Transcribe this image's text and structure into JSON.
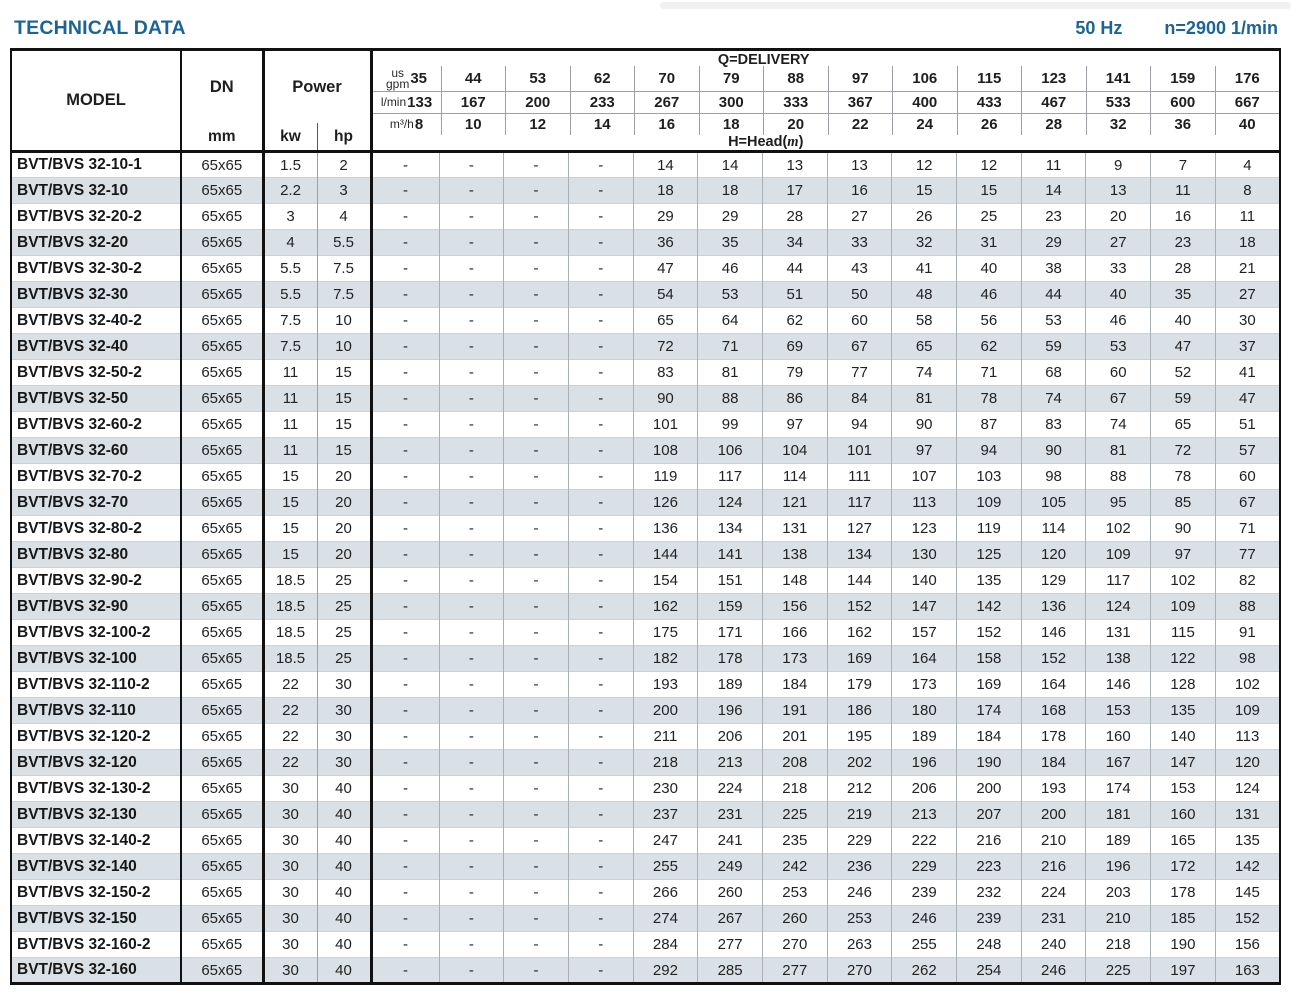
{
  "header": {
    "title": "TECHNICAL DATA",
    "frequency": "50 Hz",
    "speed": "n=2900 1/min"
  },
  "colors": {
    "accent_blue": "#1d6496",
    "row_alt": "#dae1e6",
    "border_dark": "#111111",
    "grid_light": "#9aa0a4"
  },
  "table": {
    "columns": {
      "model_label": "MODEL",
      "dn_label": "DN",
      "dn_unit": "mm",
      "power_label": "Power",
      "kw_label": "kw",
      "hp_label": "hp"
    },
    "delivery": {
      "q_label": "Q=DELIVERY",
      "head_label_prefix": "H=Head(",
      "head_label_m": "m",
      "head_label_suffix": ")",
      "unit_rows": [
        {
          "unit_lines": [
            "us",
            "gpm"
          ],
          "values": [
            "35",
            "44",
            "53",
            "62",
            "70",
            "79",
            "88",
            "97",
            "106",
            "115",
            "123",
            "141",
            "159",
            "176"
          ]
        },
        {
          "unit_lines": [
            "l/min"
          ],
          "values": [
            "133",
            "167",
            "200",
            "233",
            "267",
            "300",
            "333",
            "367",
            "400",
            "433",
            "467",
            "533",
            "600",
            "667"
          ]
        },
        {
          "unit_lines": [
            "m³/h"
          ],
          "values": [
            "8",
            "10",
            "12",
            "14",
            "16",
            "18",
            "20",
            "22",
            "24",
            "26",
            "28",
            "32",
            "36",
            "40"
          ]
        }
      ]
    },
    "rows": [
      {
        "model": "BVT/BVS 32-10-1",
        "dn": "65x65",
        "kw": "1.5",
        "hp": "2",
        "head": [
          "-",
          "-",
          "-",
          "-",
          "14",
          "14",
          "13",
          "13",
          "12",
          "12",
          "11",
          "9",
          "7",
          "4"
        ]
      },
      {
        "model": "BVT/BVS 32-10",
        "dn": "65x65",
        "kw": "2.2",
        "hp": "3",
        "head": [
          "-",
          "-",
          "-",
          "-",
          "18",
          "18",
          "17",
          "16",
          "15",
          "15",
          "14",
          "13",
          "11",
          "8"
        ]
      },
      {
        "model": "BVT/BVS 32-20-2",
        "dn": "65x65",
        "kw": "3",
        "hp": "4",
        "head": [
          "-",
          "-",
          "-",
          "-",
          "29",
          "29",
          "28",
          "27",
          "26",
          "25",
          "23",
          "20",
          "16",
          "11"
        ]
      },
      {
        "model": "BVT/BVS 32-20",
        "dn": "65x65",
        "kw": "4",
        "hp": "5.5",
        "head": [
          "-",
          "-",
          "-",
          "-",
          "36",
          "35",
          "34",
          "33",
          "32",
          "31",
          "29",
          "27",
          "23",
          "18"
        ]
      },
      {
        "model": "BVT/BVS 32-30-2",
        "dn": "65x65",
        "kw": "5.5",
        "hp": "7.5",
        "head": [
          "-",
          "-",
          "-",
          "-",
          "47",
          "46",
          "44",
          "43",
          "41",
          "40",
          "38",
          "33",
          "28",
          "21"
        ]
      },
      {
        "model": "BVT/BVS 32-30",
        "dn": "65x65",
        "kw": "5.5",
        "hp": "7.5",
        "head": [
          "-",
          "-",
          "-",
          "-",
          "54",
          "53",
          "51",
          "50",
          "48",
          "46",
          "44",
          "40",
          "35",
          "27"
        ]
      },
      {
        "model": "BVT/BVS 32-40-2",
        "dn": "65x65",
        "kw": "7.5",
        "hp": "10",
        "head": [
          "-",
          "-",
          "-",
          "-",
          "65",
          "64",
          "62",
          "60",
          "58",
          "56",
          "53",
          "46",
          "40",
          "30"
        ]
      },
      {
        "model": "BVT/BVS 32-40",
        "dn": "65x65",
        "kw": "7.5",
        "hp": "10",
        "head": [
          "-",
          "-",
          "-",
          "-",
          "72",
          "71",
          "69",
          "67",
          "65",
          "62",
          "59",
          "53",
          "47",
          "37"
        ]
      },
      {
        "model": "BVT/BVS 32-50-2",
        "dn": "65x65",
        "kw": "11",
        "hp": "15",
        "head": [
          "-",
          "-",
          "-",
          "-",
          "83",
          "81",
          "79",
          "77",
          "74",
          "71",
          "68",
          "60",
          "52",
          "41"
        ]
      },
      {
        "model": "BVT/BVS 32-50",
        "dn": "65x65",
        "kw": "11",
        "hp": "15",
        "head": [
          "-",
          "-",
          "-",
          "-",
          "90",
          "88",
          "86",
          "84",
          "81",
          "78",
          "74",
          "67",
          "59",
          "47"
        ]
      },
      {
        "model": "BVT/BVS 32-60-2",
        "dn": "65x65",
        "kw": "11",
        "hp": "15",
        "head": [
          "-",
          "-",
          "-",
          "-",
          "101",
          "99",
          "97",
          "94",
          "90",
          "87",
          "83",
          "74",
          "65",
          "51"
        ]
      },
      {
        "model": "BVT/BVS 32-60",
        "dn": "65x65",
        "kw": "11",
        "hp": "15",
        "head": [
          "-",
          "-",
          "-",
          "-",
          "108",
          "106",
          "104",
          "101",
          "97",
          "94",
          "90",
          "81",
          "72",
          "57"
        ]
      },
      {
        "model": "BVT/BVS 32-70-2",
        "dn": "65x65",
        "kw": "15",
        "hp": "20",
        "head": [
          "-",
          "-",
          "-",
          "-",
          "119",
          "117",
          "114",
          "111",
          "107",
          "103",
          "98",
          "88",
          "78",
          "60"
        ]
      },
      {
        "model": "BVT/BVS 32-70",
        "dn": "65x65",
        "kw": "15",
        "hp": "20",
        "head": [
          "-",
          "-",
          "-",
          "-",
          "126",
          "124",
          "121",
          "117",
          "113",
          "109",
          "105",
          "95",
          "85",
          "67"
        ]
      },
      {
        "model": "BVT/BVS 32-80-2",
        "dn": "65x65",
        "kw": "15",
        "hp": "20",
        "head": [
          "-",
          "-",
          "-",
          "-",
          "136",
          "134",
          "131",
          "127",
          "123",
          "119",
          "114",
          "102",
          "90",
          "71"
        ]
      },
      {
        "model": "BVT/BVS 32-80",
        "dn": "65x65",
        "kw": "15",
        "hp": "20",
        "head": [
          "-",
          "-",
          "-",
          "-",
          "144",
          "141",
          "138",
          "134",
          "130",
          "125",
          "120",
          "109",
          "97",
          "77"
        ]
      },
      {
        "model": "BVT/BVS 32-90-2",
        "dn": "65x65",
        "kw": "18.5",
        "hp": "25",
        "head": [
          "-",
          "-",
          "-",
          "-",
          "154",
          "151",
          "148",
          "144",
          "140",
          "135",
          "129",
          "117",
          "102",
          "82"
        ]
      },
      {
        "model": "BVT/BVS 32-90",
        "dn": "65x65",
        "kw": "18.5",
        "hp": "25",
        "head": [
          "-",
          "-",
          "-",
          "-",
          "162",
          "159",
          "156",
          "152",
          "147",
          "142",
          "136",
          "124",
          "109",
          "88"
        ]
      },
      {
        "model": "BVT/BVS 32-100-2",
        "dn": "65x65",
        "kw": "18.5",
        "hp": "25",
        "head": [
          "-",
          "-",
          "-",
          "-",
          "175",
          "171",
          "166",
          "162",
          "157",
          "152",
          "146",
          "131",
          "115",
          "91"
        ]
      },
      {
        "model": "BVT/BVS 32-100",
        "dn": "65x65",
        "kw": "18.5",
        "hp": "25",
        "head": [
          "-",
          "-",
          "-",
          "-",
          "182",
          "178",
          "173",
          "169",
          "164",
          "158",
          "152",
          "138",
          "122",
          "98"
        ]
      },
      {
        "model": "BVT/BVS 32-110-2",
        "dn": "65x65",
        "kw": "22",
        "hp": "30",
        "head": [
          "-",
          "-",
          "-",
          "-",
          "193",
          "189",
          "184",
          "179",
          "173",
          "169",
          "164",
          "146",
          "128",
          "102"
        ]
      },
      {
        "model": "BVT/BVS 32-110",
        "dn": "65x65",
        "kw": "22",
        "hp": "30",
        "head": [
          "-",
          "-",
          "-",
          "-",
          "200",
          "196",
          "191",
          "186",
          "180",
          "174",
          "168",
          "153",
          "135",
          "109"
        ]
      },
      {
        "model": "BVT/BVS 32-120-2",
        "dn": "65x65",
        "kw": "22",
        "hp": "30",
        "head": [
          "-",
          "-",
          "-",
          "-",
          "211",
          "206",
          "201",
          "195",
          "189",
          "184",
          "178",
          "160",
          "140",
          "113"
        ]
      },
      {
        "model": "BVT/BVS 32-120",
        "dn": "65x65",
        "kw": "22",
        "hp": "30",
        "head": [
          "-",
          "-",
          "-",
          "-",
          "218",
          "213",
          "208",
          "202",
          "196",
          "190",
          "184",
          "167",
          "147",
          "120"
        ]
      },
      {
        "model": "BVT/BVS 32-130-2",
        "dn": "65x65",
        "kw": "30",
        "hp": "40",
        "head": [
          "-",
          "-",
          "-",
          "-",
          "230",
          "224",
          "218",
          "212",
          "206",
          "200",
          "193",
          "174",
          "153",
          "124"
        ]
      },
      {
        "model": "BVT/BVS 32-130",
        "dn": "65x65",
        "kw": "30",
        "hp": "40",
        "head": [
          "-",
          "-",
          "-",
          "-",
          "237",
          "231",
          "225",
          "219",
          "213",
          "207",
          "200",
          "181",
          "160",
          "131"
        ]
      },
      {
        "model": "BVT/BVS 32-140-2",
        "dn": "65x65",
        "kw": "30",
        "hp": "40",
        "head": [
          "-",
          "-",
          "-",
          "-",
          "247",
          "241",
          "235",
          "229",
          "222",
          "216",
          "210",
          "189",
          "165",
          "135"
        ]
      },
      {
        "model": "BVT/BVS 32-140",
        "dn": "65x65",
        "kw": "30",
        "hp": "40",
        "head": [
          "-",
          "-",
          "-",
          "-",
          "255",
          "249",
          "242",
          "236",
          "229",
          "223",
          "216",
          "196",
          "172",
          "142"
        ]
      },
      {
        "model": "BVT/BVS 32-150-2",
        "dn": "65x65",
        "kw": "30",
        "hp": "40",
        "head": [
          "-",
          "-",
          "-",
          "-",
          "266",
          "260",
          "253",
          "246",
          "239",
          "232",
          "224",
          "203",
          "178",
          "145"
        ]
      },
      {
        "model": "BVT/BVS 32-150",
        "dn": "65x65",
        "kw": "30",
        "hp": "40",
        "head": [
          "-",
          "-",
          "-",
          "-",
          "274",
          "267",
          "260",
          "253",
          "246",
          "239",
          "231",
          "210",
          "185",
          "152"
        ]
      },
      {
        "model": "BVT/BVS 32-160-2",
        "dn": "65x65",
        "kw": "30",
        "hp": "40",
        "head": [
          "-",
          "-",
          "-",
          "-",
          "284",
          "277",
          "270",
          "263",
          "255",
          "248",
          "240",
          "218",
          "190",
          "156"
        ]
      },
      {
        "model": "BVT/BVS 32-160",
        "dn": "65x65",
        "kw": "30",
        "hp": "40",
        "head": [
          "-",
          "-",
          "-",
          "-",
          "292",
          "285",
          "277",
          "270",
          "262",
          "254",
          "246",
          "225",
          "197",
          "163"
        ]
      }
    ]
  }
}
